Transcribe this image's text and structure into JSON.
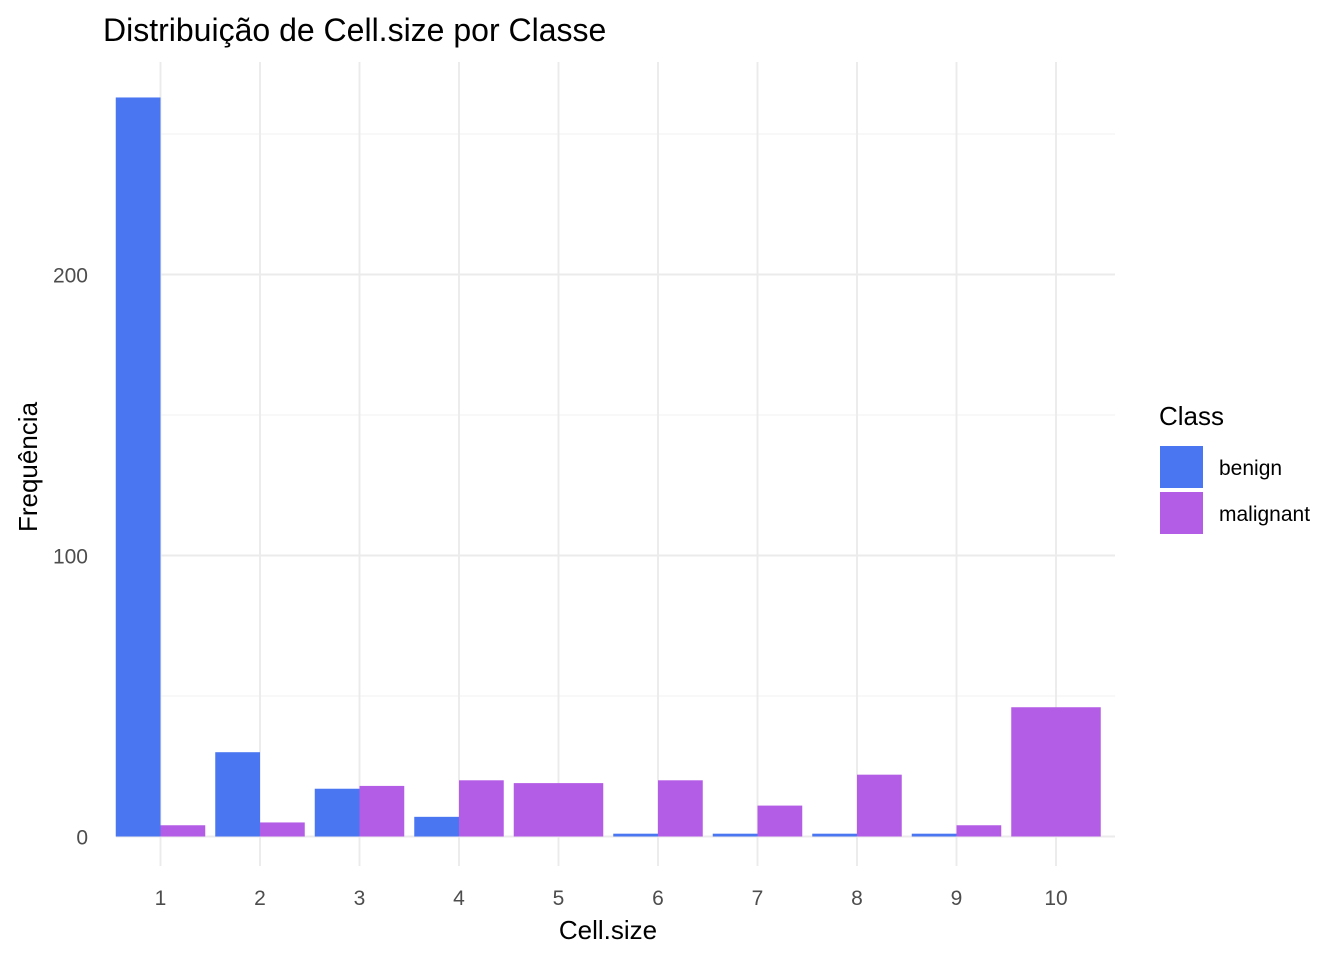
{
  "chart_data": {
    "type": "bar",
    "title": "Distribuição de Cell.size por Classe",
    "xlabel": "Cell.size",
    "ylabel": "Frequência",
    "categories": [
      "1",
      "2",
      "3",
      "4",
      "5",
      "6",
      "7",
      "8",
      "9",
      "10"
    ],
    "series": [
      {
        "name": "benign",
        "color": "#4a76f2",
        "values": [
          263,
          30,
          17,
          7,
          0,
          1,
          1,
          1,
          1,
          0
        ]
      },
      {
        "name": "malignant",
        "color": "#b35ce5",
        "values": [
          4,
          5,
          18,
          20,
          19,
          20,
          11,
          22,
          4,
          46
        ]
      }
    ],
    "yticks": [
      0,
      100,
      200
    ],
    "ylim": [
      -10,
      275
    ],
    "grid": true,
    "legend": {
      "title": "Class",
      "position": "right"
    }
  }
}
